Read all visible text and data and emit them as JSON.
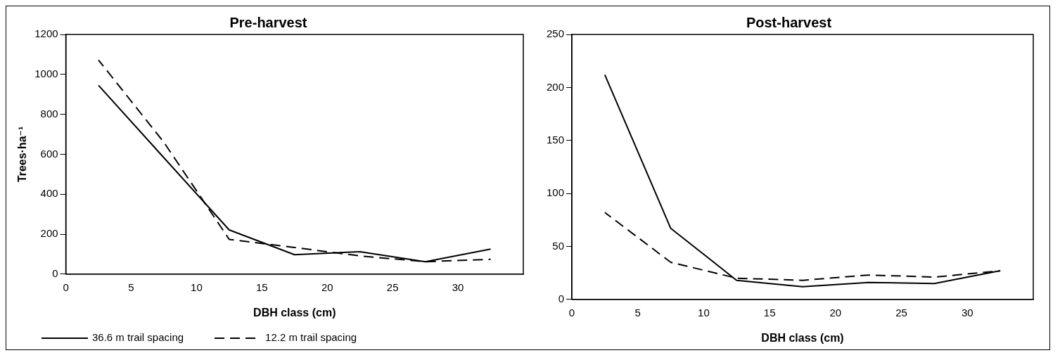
{
  "chart_data": [
    {
      "type": "line",
      "title": "Pre-harvest",
      "xlabel": "DBH class (cm)",
      "ylabel": "Trees·ha⁻¹",
      "x": [
        2.5,
        7.5,
        12.5,
        17.5,
        22.5,
        27.5,
        32.5
      ],
      "xlim": [
        0,
        35
      ],
      "xticks": [
        0,
        5,
        10,
        15,
        20,
        25,
        30
      ],
      "ylim": [
        0,
        1200
      ],
      "yticks": [
        0,
        200,
        400,
        600,
        800,
        1000,
        1200
      ],
      "grid": false,
      "legend": "bottom",
      "marker": "none",
      "series": [
        {
          "name": "36.6 m trail spacing",
          "color": "#000000",
          "line_style": "solid",
          "values": [
            945,
            583,
            221,
            97,
            112,
            62,
            125
          ]
        },
        {
          "name": "12.2 m trail spacing",
          "color": "#000000",
          "line_style": "dashed",
          "values": [
            1072,
            660,
            174,
            133,
            91,
            62,
            74
          ]
        }
      ]
    },
    {
      "type": "line",
      "title": "Post-harvest",
      "xlabel": "DBH class (cm)",
      "x": [
        2.5,
        7.5,
        12.5,
        17.5,
        22.5,
        27.5,
        32.5
      ],
      "xlim": [
        0,
        35
      ],
      "xticks": [
        0,
        5,
        10,
        15,
        20,
        25,
        30
      ],
      "ylim": [
        0,
        250
      ],
      "yticks": [
        0,
        50,
        100,
        150,
        200,
        250
      ],
      "grid": false,
      "marker": "none",
      "series": [
        {
          "color": "#000000",
          "line_style": "solid",
          "values": [
            212,
            67,
            18,
            12,
            16,
            15,
            27
          ]
        },
        {
          "color": "#000000",
          "line_style": "dashed",
          "values": [
            82,
            35,
            20,
            18,
            23,
            21,
            27
          ]
        }
      ]
    }
  ]
}
